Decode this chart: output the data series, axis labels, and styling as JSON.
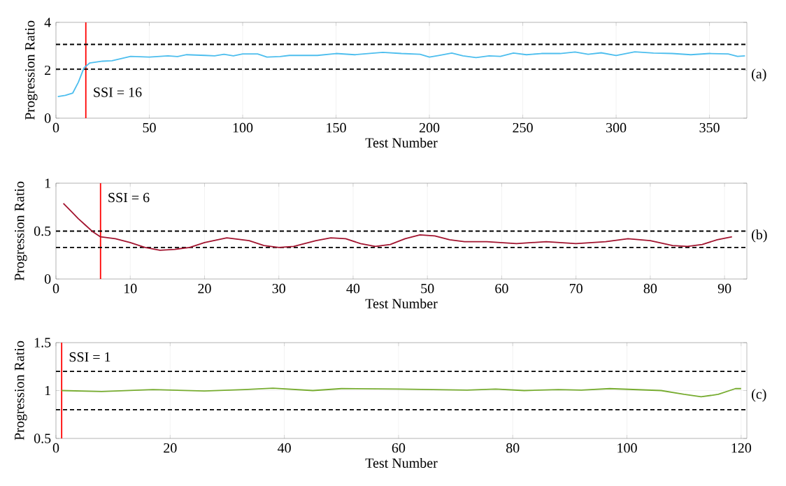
{
  "chart_data": [
    {
      "type": "line",
      "xlabel": "Test Number",
      "ylabel": "Progression Ratio",
      "xlim": [
        0,
        370
      ],
      "ylim": [
        0,
        4
      ],
      "xticks": [
        0,
        50,
        100,
        150,
        200,
        250,
        300,
        350
      ],
      "yticks": [
        0,
        2,
        4
      ],
      "grid": true,
      "x": [
        1,
        5,
        9,
        12,
        15,
        18,
        25,
        30,
        40,
        50,
        60,
        65,
        70,
        80,
        85,
        90,
        95,
        100,
        108,
        113,
        120,
        125,
        140,
        150,
        160,
        175,
        185,
        195,
        200,
        205,
        212,
        218,
        225,
        232,
        238,
        245,
        252,
        260,
        270,
        278,
        285,
        292,
        300,
        310,
        320,
        330,
        340,
        350,
        360,
        365,
        369
      ],
      "series": [
        {
          "color": "#4dbeee",
          "values": [
            0.9,
            0.95,
            1.05,
            1.5,
            2.1,
            2.3,
            2.38,
            2.4,
            2.58,
            2.55,
            2.6,
            2.57,
            2.65,
            2.62,
            2.6,
            2.67,
            2.6,
            2.68,
            2.68,
            2.55,
            2.57,
            2.62,
            2.62,
            2.7,
            2.65,
            2.75,
            2.7,
            2.67,
            2.55,
            2.62,
            2.72,
            2.6,
            2.53,
            2.6,
            2.58,
            2.72,
            2.65,
            2.7,
            2.7,
            2.76,
            2.67,
            2.73,
            2.62,
            2.77,
            2.72,
            2.7,
            2.65,
            2.7,
            2.68,
            2.58,
            2.6
          ]
        }
      ],
      "ref_lines": [
        {
          "axis": "x",
          "value": 16,
          "label": "SSI = 16",
          "color": "#ff0000"
        },
        {
          "axis": "y",
          "value": 3.08,
          "color": "#000000",
          "line_style": "dashed"
        },
        {
          "axis": "y",
          "value": 2.05,
          "color": "#000000",
          "line_style": "dashed"
        }
      ],
      "annotations": [
        "(a)"
      ]
    },
    {
      "type": "line",
      "xlabel": "Test Number",
      "ylabel": "Progression Ratio",
      "xlim": [
        0,
        93
      ],
      "ylim": [
        0,
        1
      ],
      "xticks": [
        0,
        10,
        20,
        30,
        40,
        50,
        60,
        70,
        80,
        90
      ],
      "yticks": [
        0,
        0.5,
        1
      ],
      "grid": true,
      "x": [
        1,
        2,
        3,
        4,
        5,
        6,
        8,
        10,
        12,
        14,
        16,
        18,
        20,
        23,
        26,
        28,
        30,
        32,
        35,
        37,
        39,
        41,
        43,
        45,
        47,
        49,
        51,
        53,
        55,
        58,
        62,
        66,
        70,
        74,
        77,
        80,
        83,
        85,
        87,
        89,
        91
      ],
      "series": [
        {
          "color": "#a2142f",
          "values": [
            0.79,
            0.71,
            0.63,
            0.56,
            0.49,
            0.44,
            0.42,
            0.38,
            0.33,
            0.3,
            0.31,
            0.33,
            0.38,
            0.43,
            0.4,
            0.35,
            0.33,
            0.34,
            0.4,
            0.43,
            0.42,
            0.37,
            0.34,
            0.36,
            0.42,
            0.46,
            0.45,
            0.41,
            0.39,
            0.39,
            0.37,
            0.39,
            0.37,
            0.39,
            0.42,
            0.4,
            0.35,
            0.34,
            0.36,
            0.41,
            0.44
          ]
        }
      ],
      "ref_lines": [
        {
          "axis": "x",
          "value": 6,
          "label": "SSI = 6",
          "color": "#ff0000"
        },
        {
          "axis": "y",
          "value": 0.5,
          "color": "#000000",
          "line_style": "dashed"
        },
        {
          "axis": "y",
          "value": 0.33,
          "color": "#000000",
          "line_style": "dashed"
        }
      ],
      "annotations": [
        "(b)"
      ]
    },
    {
      "type": "line",
      "xlabel": "Test Number",
      "ylabel": "Progression Ratio",
      "xlim": [
        0,
        121
      ],
      "ylim": [
        0.5,
        1.5
      ],
      "xticks": [
        0,
        20,
        40,
        60,
        80,
        100,
        120
      ],
      "yticks": [
        0.5,
        1,
        1.5
      ],
      "grid": true,
      "x": [
        1,
        8,
        17,
        26,
        33,
        38,
        45,
        50,
        60,
        72,
        77,
        82,
        88,
        92,
        97,
        106,
        110,
        113,
        116,
        119,
        120
      ],
      "series": [
        {
          "color": "#77ac30",
          "values": [
            1.0,
            0.99,
            1.01,
            0.995,
            1.01,
            1.025,
            1.0,
            1.02,
            1.015,
            1.005,
            1.015,
            1.0,
            1.01,
            1.005,
            1.02,
            1.0,
            0.96,
            0.935,
            0.96,
            1.02,
            1.02
          ]
        }
      ],
      "ref_lines": [
        {
          "axis": "x",
          "value": 1,
          "label": "SSI = 1",
          "color": "#ff0000"
        },
        {
          "axis": "y",
          "value": 1.2,
          "color": "#000000",
          "line_style": "dashed"
        },
        {
          "axis": "y",
          "value": 0.8,
          "color": "#000000",
          "line_style": "dashed"
        }
      ],
      "annotations": [
        "(c)"
      ]
    }
  ]
}
